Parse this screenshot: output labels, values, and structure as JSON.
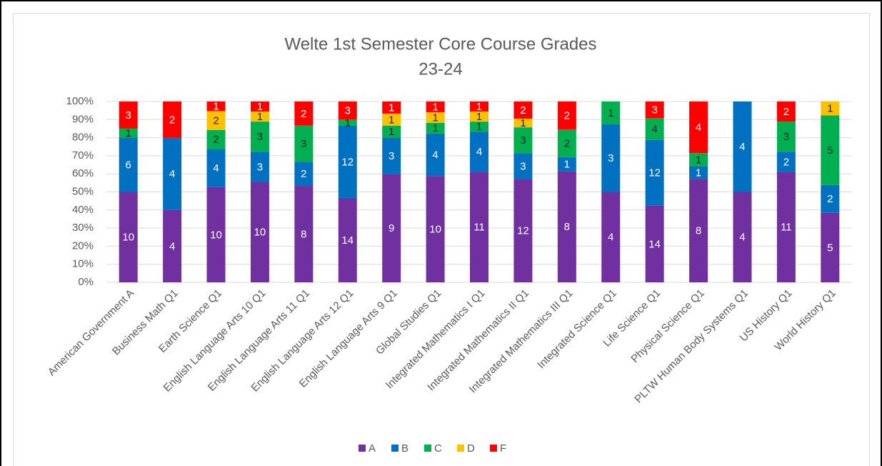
{
  "chart_data": {
    "type": "bar",
    "stacking": "percent",
    "title": "Welte 1st Semester Core Course Grades",
    "subtitle": "23-24",
    "categories": [
      "American Government A",
      "Business Math Q1",
      "Earth Science Q1",
      "English Language Arts 10 Q1",
      "English Language Arts 11 Q1",
      "English Language Arts 12 Q1",
      "English Language Arts 9 Q1",
      "Global Studies Q1",
      "Integrated Mathematics I Q1",
      "Integrated Mathematics II Q1",
      "Integrated Mathematics III Q1",
      "Integrated Science Q1",
      "Life Science Q1",
      "Physical Science Q1",
      "PLTW Human Body Systems Q1",
      "US History Q1",
      "World History Q1"
    ],
    "series": [
      {
        "name": "A",
        "color": "#7030a0",
        "label_color": "#ffffff",
        "values": [
          10,
          4,
          10,
          10,
          8,
          14,
          9,
          10,
          11,
          12,
          8,
          4,
          14,
          8,
          4,
          11,
          5
        ]
      },
      {
        "name": "B",
        "color": "#0070c0",
        "label_color": "#ffffff",
        "values": [
          6,
          4,
          4,
          3,
          2,
          12,
          3,
          4,
          4,
          3,
          1,
          3,
          12,
          1,
          4,
          2,
          2
        ]
      },
      {
        "name": "C",
        "color": "#00b050",
        "label_color": "#262626",
        "values": [
          1,
          0,
          2,
          3,
          3,
          1,
          1,
          1,
          1,
          3,
          2,
          1,
          4,
          1,
          0,
          3,
          5
        ]
      },
      {
        "name": "D",
        "color": "#ffc000",
        "label_color": "#262626",
        "values": [
          0,
          0,
          2,
          1,
          0,
          0,
          1,
          1,
          1,
          1,
          0,
          0,
          0,
          0,
          0,
          0,
          1
        ]
      },
      {
        "name": "F",
        "color": "#ff0000",
        "label_color": "#ffffff",
        "values": [
          3,
          2,
          1,
          1,
          2,
          3,
          1,
          1,
          1,
          2,
          2,
          0,
          3,
          4,
          0,
          2,
          0
        ]
      }
    ],
    "ylim": [
      0,
      100
    ],
    "yticks": [
      {
        "value": 0,
        "label": "0%"
      },
      {
        "value": 10,
        "label": "10%"
      },
      {
        "value": 20,
        "label": "20%"
      },
      {
        "value": 30,
        "label": "30%"
      },
      {
        "value": 40,
        "label": "40%"
      },
      {
        "value": 50,
        "label": "50%"
      },
      {
        "value": 60,
        "label": "60%"
      },
      {
        "value": 70,
        "label": "70%"
      },
      {
        "value": 80,
        "label": "80%"
      },
      {
        "value": 90,
        "label": "90%"
      },
      {
        "value": 100,
        "label": "100%"
      }
    ],
    "grid": true,
    "legend": "bottom"
  }
}
